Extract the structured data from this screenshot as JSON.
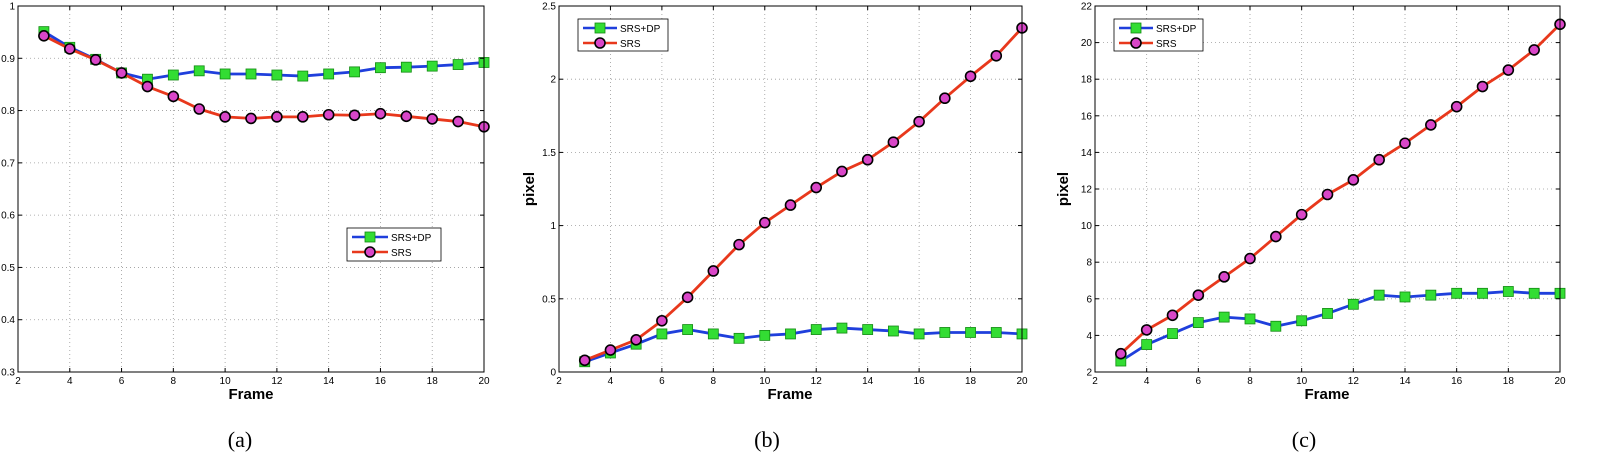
{
  "chart_data": [
    {
      "type": "line",
      "panel_label": "(a)",
      "xlabel": "Frame",
      "ylabel": "",
      "xlim": [
        2,
        20
      ],
      "ylim": [
        0.3,
        1
      ],
      "xticks": [
        "2",
        "4",
        "6",
        "8",
        "10",
        "12",
        "14",
        "16",
        "18",
        "20"
      ],
      "yticks": [
        "0.3",
        "0.4",
        "0.5",
        "0.6",
        "0.7",
        "0.8",
        "0.9",
        "1"
      ],
      "grid": true,
      "legend_position": "center-right",
      "x": [
        3,
        4,
        5,
        6,
        7,
        8,
        9,
        10,
        11,
        12,
        13,
        14,
        15,
        16,
        17,
        18,
        19,
        20
      ],
      "series": [
        {
          "name": "SRS+DP",
          "line_color": "#1f3fdc",
          "marker": "square",
          "marker_color": "#33dd33",
          "values": [
            0.951,
            0.921,
            0.898,
            0.872,
            0.86,
            0.868,
            0.876,
            0.87,
            0.87,
            0.868,
            0.866,
            0.87,
            0.874,
            0.882,
            0.883,
            0.885,
            0.888,
            0.892
          ]
        },
        {
          "name": "SRS",
          "line_color": "#e8381c",
          "marker": "circle",
          "marker_color": "#d946c8",
          "values": [
            0.943,
            0.918,
            0.897,
            0.872,
            0.846,
            0.827,
            0.803,
            0.788,
            0.785,
            0.788,
            0.788,
            0.792,
            0.791,
            0.794,
            0.789,
            0.784,
            0.779,
            0.769
          ]
        }
      ]
    },
    {
      "type": "line",
      "panel_label": "(b)",
      "xlabel": "Frame",
      "ylabel": "pixel",
      "xlim": [
        2,
        20
      ],
      "ylim": [
        0,
        2.5
      ],
      "xticks": [
        "2",
        "4",
        "6",
        "8",
        "10",
        "12",
        "14",
        "16",
        "18",
        "20"
      ],
      "yticks": [
        "0",
        "0.5",
        "1",
        "1.5",
        "2",
        "2.5"
      ],
      "grid": true,
      "legend_position": "top-left",
      "x": [
        3,
        4,
        5,
        6,
        7,
        8,
        9,
        10,
        11,
        12,
        13,
        14,
        15,
        16,
        17,
        18,
        19,
        20
      ],
      "series": [
        {
          "name": "SRS+DP",
          "line_color": "#1f3fdc",
          "marker": "square",
          "marker_color": "#33dd33",
          "values": [
            0.07,
            0.13,
            0.19,
            0.26,
            0.29,
            0.26,
            0.23,
            0.25,
            0.26,
            0.29,
            0.3,
            0.29,
            0.28,
            0.26,
            0.27,
            0.27,
            0.27,
            0.26
          ]
        },
        {
          "name": "SRS",
          "line_color": "#e8381c",
          "marker": "circle",
          "marker_color": "#d946c8",
          "values": [
            0.08,
            0.15,
            0.22,
            0.35,
            0.51,
            0.69,
            0.87,
            1.02,
            1.14,
            1.26,
            1.37,
            1.45,
            1.57,
            1.71,
            1.87,
            2.02,
            2.16,
            2.35
          ]
        }
      ]
    },
    {
      "type": "line",
      "panel_label": "(c)",
      "xlabel": "Frame",
      "ylabel": "pixel",
      "xlim": [
        2,
        20
      ],
      "ylim": [
        2,
        22
      ],
      "xticks": [
        "2",
        "4",
        "6",
        "8",
        "10",
        "12",
        "14",
        "16",
        "18",
        "20"
      ],
      "yticks": [
        "2",
        "4",
        "6",
        "8",
        "10",
        "12",
        "14",
        "16",
        "18",
        "20",
        "22"
      ],
      "grid": true,
      "legend_position": "top-left",
      "x": [
        3,
        4,
        5,
        6,
        7,
        8,
        9,
        10,
        11,
        12,
        13,
        14,
        15,
        16,
        17,
        18,
        19,
        20
      ],
      "series": [
        {
          "name": "SRS+DP",
          "line_color": "#1f3fdc",
          "marker": "square",
          "marker_color": "#33dd33",
          "values": [
            2.6,
            3.5,
            4.1,
            4.7,
            5.0,
            4.9,
            4.5,
            4.8,
            5.2,
            5.7,
            6.2,
            6.1,
            6.2,
            6.3,
            6.3,
            6.4,
            6.3,
            6.3
          ]
        },
        {
          "name": "SRS",
          "line_color": "#e8381c",
          "marker": "circle",
          "marker_color": "#d946c8",
          "values": [
            3.0,
            4.3,
            5.1,
            6.2,
            7.2,
            8.2,
            9.4,
            10.6,
            11.7,
            12.5,
            13.6,
            14.5,
            15.5,
            16.5,
            17.6,
            18.5,
            19.6,
            21.0
          ]
        }
      ]
    }
  ]
}
